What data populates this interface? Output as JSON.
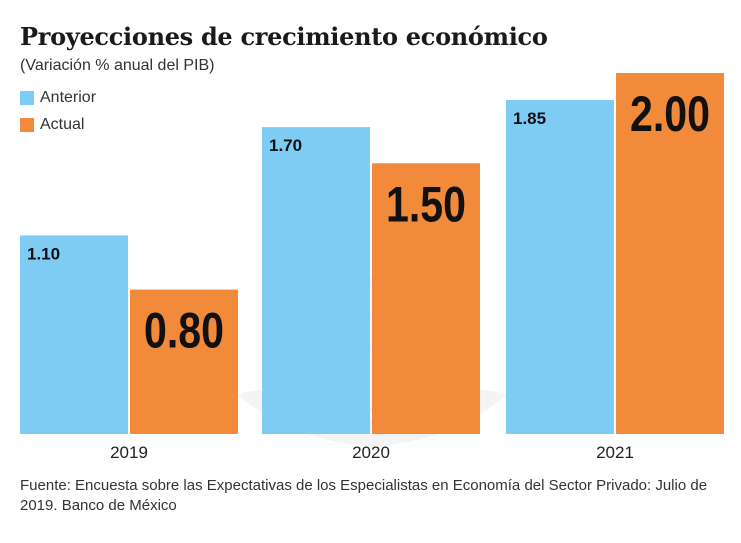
{
  "chart_data": {
    "type": "bar",
    "title": "Proyecciones de crecimiento económico",
    "subtitle": "(Variación % anual del PIB)",
    "categories": [
      "2019",
      "2020",
      "2021"
    ],
    "series": [
      {
        "name": "Anterior",
        "values": [
          1.1,
          1.7,
          1.85
        ],
        "labels": [
          "1.10",
          "1.70",
          "1.85"
        ],
        "color": "#7ecbf3"
      },
      {
        "name": "Actual",
        "values": [
          0.8,
          1.5,
          2.0
        ],
        "labels": [
          "0.80",
          "1.50",
          "2.00"
        ],
        "color": "#f28a3c"
      }
    ],
    "ylim": [
      0,
      2.0
    ],
    "grid": false,
    "legend_position": "top-left",
    "xlabel": "",
    "ylabel": ""
  },
  "source": "Fuente: Encuesta sobre las Expectativas de los Especialistas en Economía del Sector Privado: Julio de 2019. Banco de México"
}
